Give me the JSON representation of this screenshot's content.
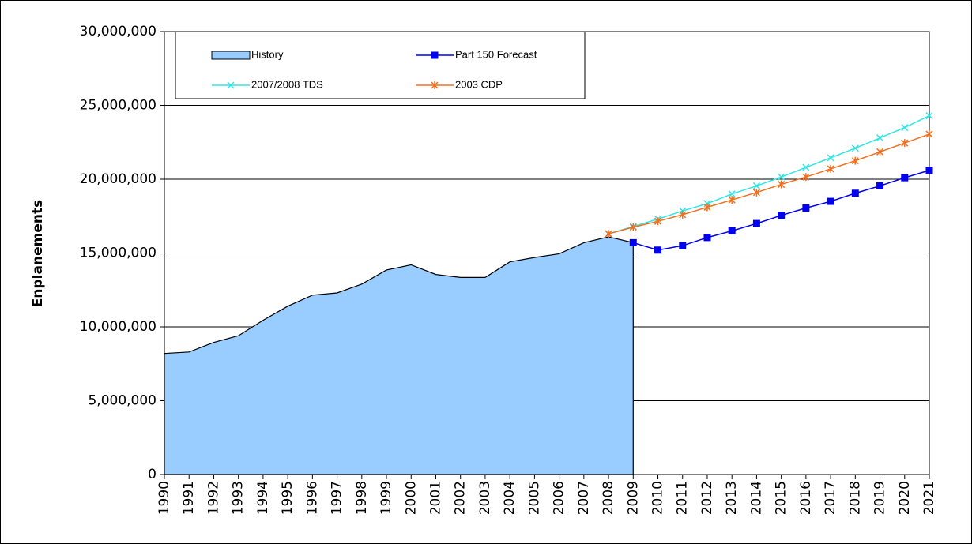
{
  "chart_data": {
    "type": "line",
    "y_label": "Enplanements",
    "categories": [
      "1990",
      "1991",
      "1992",
      "1993",
      "1994",
      "1995",
      "1996",
      "1997",
      "1998",
      "1999",
      "2000",
      "2001",
      "2002",
      "2003",
      "2004",
      "2005",
      "2006",
      "2007",
      "2008",
      "2009",
      "2010",
      "2011",
      "2012",
      "2013",
      "2014",
      "2015",
      "2016",
      "2017",
      "2018",
      "2019",
      "2020",
      "2021"
    ],
    "ylim": [
      0,
      30000000
    ],
    "yticks": [
      0,
      {
        "value": 5000000,
        "label": "5,000,000"
      },
      {
        "value": 10000000,
        "label": "10,000,000"
      },
      {
        "value": 15000000,
        "label": "15,000,000"
      },
      {
        "value": 20000000,
        "label": "20,000,000"
      },
      {
        "value": 25000000,
        "label": "25,000,000"
      },
      {
        "value": 30000000,
        "label": "30,000,000"
      }
    ],
    "grid": true,
    "series": [
      {
        "name": "History",
        "style": "area",
        "color": "#99ccff",
        "values": [
          8200000,
          8300000,
          8950000,
          9400000,
          10450000,
          11400000,
          12150000,
          12300000,
          12900000,
          13850000,
          14200000,
          13550000,
          13350000,
          13350000,
          14400000,
          14700000,
          14950000,
          15700000,
          16100000,
          15700000,
          null,
          null,
          null,
          null,
          null,
          null,
          null,
          null,
          null,
          null,
          null,
          null
        ]
      },
      {
        "name": "Part 150 Forecast",
        "style": "line",
        "marker": "square",
        "color": "#0000ee",
        "values": [
          null,
          null,
          null,
          null,
          null,
          null,
          null,
          null,
          null,
          null,
          null,
          null,
          null,
          null,
          null,
          null,
          null,
          null,
          null,
          15700000,
          15200000,
          15500000,
          16050000,
          16500000,
          17000000,
          17550000,
          18050000,
          18500000,
          19050000,
          19550000,
          20100000,
          20600000
        ]
      },
      {
        "name": "2007/2008 TDS",
        "style": "line",
        "marker": "x",
        "color": "#33e6e6",
        "values": [
          null,
          null,
          null,
          null,
          null,
          null,
          null,
          null,
          null,
          null,
          null,
          null,
          null,
          null,
          null,
          null,
          null,
          null,
          16300000,
          16800000,
          17300000,
          17850000,
          18350000,
          19000000,
          19550000,
          20150000,
          20800000,
          21450000,
          22100000,
          22800000,
          23500000,
          24300000
        ]
      },
      {
        "name": "2003 CDP",
        "style": "line",
        "marker": "star",
        "color": "#f07020",
        "values": [
          null,
          null,
          null,
          null,
          null,
          null,
          null,
          null,
          null,
          null,
          null,
          null,
          null,
          null,
          null,
          null,
          null,
          null,
          16300000,
          16750000,
          17150000,
          17600000,
          18100000,
          18600000,
          19100000,
          19650000,
          20150000,
          20700000,
          21250000,
          21850000,
          22450000,
          23050000
        ]
      }
    ]
  }
}
